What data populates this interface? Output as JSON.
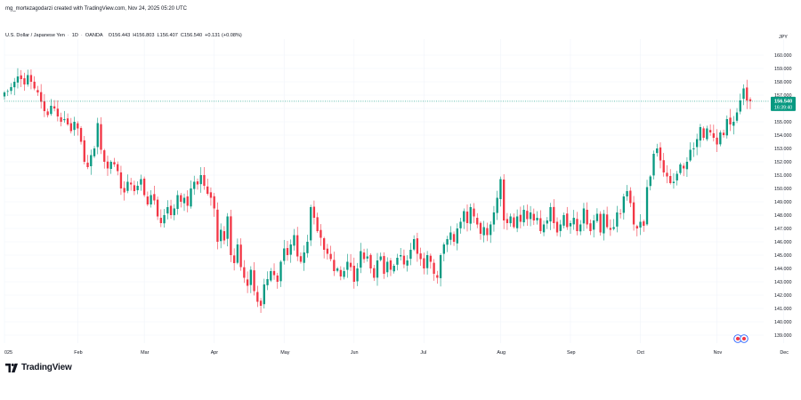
{
  "header": {
    "created_by": "mg_mortezagodarzi created with TradingView.com, Nov 24, 2025 05:20 UTC",
    "symbol_name": "U.S. Dollar / Japanese Yen",
    "interval": "1D",
    "broker": "OANDA",
    "open": "O156.443",
    "high": "H156.803",
    "low": "L156.407",
    "close": "C156.540",
    "change": "+0.131 (+0.08%)"
  },
  "brand": {
    "name": "TradingView"
  },
  "colors": {
    "up": "#089981",
    "down": "#f23645",
    "price_tag": "#089981",
    "grid": "#f0f3fa",
    "axis_text": "#131722"
  },
  "chart_data": {
    "type": "candlestick",
    "title": "U.S. Dollar / Japanese Yen · 1D · OANDA",
    "currency": "JPY",
    "ylim": [
      138.4,
      161.2
    ],
    "yticks": [
      139,
      140,
      141,
      142,
      143,
      144,
      145,
      146,
      147,
      148,
      149,
      150,
      151,
      152,
      153,
      154,
      155,
      156,
      157,
      158,
      159,
      160
    ],
    "ytick_labels": [
      "139.000",
      "140.000",
      "141.000",
      "142.000",
      "143.000",
      "144.000",
      "145.000",
      "146.000",
      "147.000",
      "148.000",
      "149.000",
      "150.000",
      "151.000",
      "152.000",
      "153.000",
      "154.000",
      "155.000",
      "156.000",
      "157.000",
      "158.000",
      "159.000",
      "160.000"
    ],
    "xlabels": [
      {
        "label": "025",
        "index": 0
      },
      {
        "label": "Feb",
        "index": 22
      },
      {
        "label": "Mar",
        "index": 42
      },
      {
        "label": "Apr",
        "index": 63
      },
      {
        "label": "May",
        "index": 84
      },
      {
        "label": "Jun",
        "index": 105
      },
      {
        "label": "Jul",
        "index": 126
      },
      {
        "label": "Aug",
        "index": 149
      },
      {
        "label": "Sep",
        "index": 170
      },
      {
        "label": "Oct",
        "index": 191
      },
      {
        "label": "Nov",
        "index": 214
      },
      {
        "label": "Dec",
        "index": 234
      }
    ],
    "last_price": "156.540",
    "countdown": "16:39:40",
    "last_value": 156.54,
    "closes": [
      157.2,
      157.3,
      157.6,
      158.0,
      158.4,
      158.2,
      157.8,
      158.5,
      158.0,
      157.5,
      157.2,
      156.5,
      155.8,
      155.5,
      156.2,
      156.0,
      155.4,
      155.0,
      155.2,
      154.8,
      154.3,
      155.0,
      154.5,
      153.5,
      152.0,
      151.6,
      152.5,
      153.0,
      154.9,
      152.9,
      152.0,
      151.5,
      152.0,
      151.8,
      151.3,
      150.0,
      149.7,
      150.5,
      150.3,
      149.8,
      150.2,
      150.7,
      149.5,
      148.8,
      149.5,
      149.1,
      147.9,
      147.4,
      148.0,
      148.6,
      148.0,
      148.5,
      149.5,
      149.0,
      149.3,
      148.7,
      150.0,
      150.5,
      150.3,
      151.0,
      150.2,
      149.6,
      149.3,
      148.5,
      146.0,
      146.9,
      146.1,
      147.9,
      145.0,
      144.4,
      145.8,
      144.1,
      143.3,
      142.7,
      143.9,
      142.3,
      141.5,
      141.2,
      142.8,
      143.2,
      143.8,
      143.5,
      143.0,
      144.5,
      145.5,
      145.0,
      145.8,
      146.5,
      144.9,
      144.5,
      145.2,
      146.0,
      148.6,
      147.8,
      146.8,
      146.3,
      145.4,
      145.1,
      144.7,
      143.8,
      144.0,
      143.4,
      143.8,
      144.5,
      144.1,
      143.0,
      144.0,
      145.3,
      144.7,
      144.9,
      144.0,
      143.3,
      144.6,
      144.9,
      143.6,
      144.5,
      143.9,
      144.2,
      144.8,
      145.0,
      144.3,
      144.6,
      145.4,
      146.2,
      145.1,
      144.7,
      144.0,
      145.0,
      144.5,
      143.6,
      143.3,
      145.0,
      145.8,
      146.2,
      146.7,
      146.0,
      147.0,
      147.5,
      148.3,
      147.4,
      148.6,
      147.9,
      147.3,
      146.6,
      147.1,
      146.5,
      147.3,
      148.2,
      149.3,
      150.7,
      147.6,
      147.4,
      147.9,
      147.1,
      147.9,
      147.5,
      148.4,
      147.7,
      148.2,
      147.6,
      147.8,
      146.8,
      147.3,
      147.6,
      148.6,
      147.4,
      146.7,
      147.3,
      148.0,
      147.1,
      147.4,
      147.8,
      146.8,
      147.3,
      148.5,
      147.3,
      146.8,
      147.6,
      148.1,
      146.7,
      148.1,
      147.1,
      146.9,
      147.1,
      148.2,
      148.1,
      149.4,
      149.8,
      148.9,
      147.3,
      147.0,
      147.5,
      147.2,
      150.1,
      150.9,
      152.6,
      153.0,
      152.1,
      151.2,
      150.9,
      150.4,
      150.5,
      151.1,
      151.8,
      151.5,
      152.0,
      152.9,
      153.0,
      153.7,
      154.6,
      153.8,
      154.5,
      154.2,
      153.8,
      153.3,
      154.2,
      154.0,
      155.2,
      154.8,
      155.0,
      155.7,
      156.6,
      157.5,
      156.6,
      156.54
    ]
  }
}
